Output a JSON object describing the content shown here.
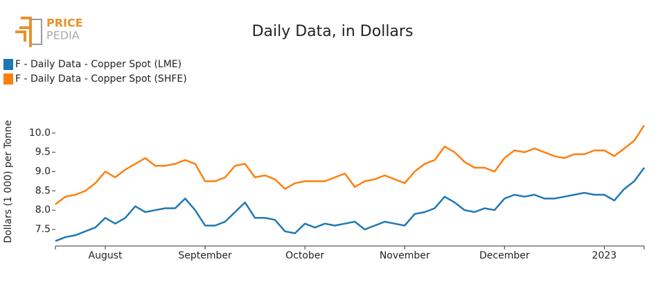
{
  "logo": [
    "PRICE",
    "PEDIA"
  ],
  "chart_data": {
    "type": "line",
    "title": "Daily Data, in Dollars",
    "y_label": "Dollars (1 000) per Tonne",
    "categories": [
      null,
      null,
      null,
      null,
      null,
      "August",
      null,
      null,
      null,
      null,
      null,
      null,
      null,
      null,
      null,
      "September",
      null,
      null,
      null,
      null,
      null,
      null,
      null,
      null,
      null,
      "October",
      null,
      null,
      null,
      null,
      null,
      null,
      null,
      null,
      null,
      "November",
      null,
      null,
      null,
      null,
      null,
      null,
      null,
      null,
      null,
      "December",
      null,
      null,
      null,
      null,
      null,
      null,
      null,
      null,
      null,
      "2023",
      null,
      null,
      null,
      null
    ],
    "series": [
      {
        "name": "F - Daily Data - Copper Spot (LME)",
        "color": "#1f77b4",
        "values": [
          7.2,
          7.3,
          7.35,
          7.45,
          7.55,
          7.8,
          7.65,
          7.8,
          8.1,
          7.95,
          8.0,
          8.05,
          8.05,
          8.3,
          8.0,
          7.6,
          7.6,
          7.7,
          7.95,
          8.2,
          7.8,
          7.8,
          7.75,
          7.45,
          7.4,
          7.65,
          7.55,
          7.65,
          7.6,
          7.65,
          7.7,
          7.5,
          7.6,
          7.7,
          7.65,
          7.6,
          7.9,
          7.95,
          8.05,
          8.35,
          8.2,
          8.0,
          7.95,
          8.05,
          8.0,
          8.3,
          8.4,
          8.35,
          8.4,
          8.3,
          8.3,
          8.35,
          8.4,
          8.45,
          8.4,
          8.4,
          8.25,
          8.55,
          8.75,
          9.1
        ]
      },
      {
        "name": "F - Daily Data - Copper Spot (SHFE)",
        "color": "#ff7f0e",
        "values": [
          8.15,
          8.35,
          8.4,
          8.5,
          8.7,
          9.0,
          8.85,
          9.05,
          9.2,
          9.35,
          9.15,
          9.15,
          9.2,
          9.3,
          9.2,
          8.75,
          8.75,
          8.85,
          9.15,
          9.2,
          8.85,
          8.9,
          8.8,
          8.55,
          8.7,
          8.75,
          8.75,
          8.75,
          8.85,
          8.95,
          8.6,
          8.75,
          8.8,
          8.9,
          8.8,
          8.7,
          9.0,
          9.2,
          9.3,
          9.65,
          9.5,
          9.25,
          9.1,
          9.1,
          9.0,
          9.35,
          9.55,
          9.5,
          9.6,
          9.5,
          9.4,
          9.35,
          9.45,
          9.45,
          9.55,
          9.55,
          9.4,
          9.6,
          9.8,
          10.2
        ]
      }
    ],
    "ylim": [
      7.07,
      10.25
    ],
    "yticks": [
      7.5,
      {
        "value": 8,
        "label": "8.0"
      },
      8.5,
      {
        "value": 9,
        "label": "9.0"
      },
      9.5,
      {
        "value": 10,
        "label": "10.0"
      }
    ]
  }
}
